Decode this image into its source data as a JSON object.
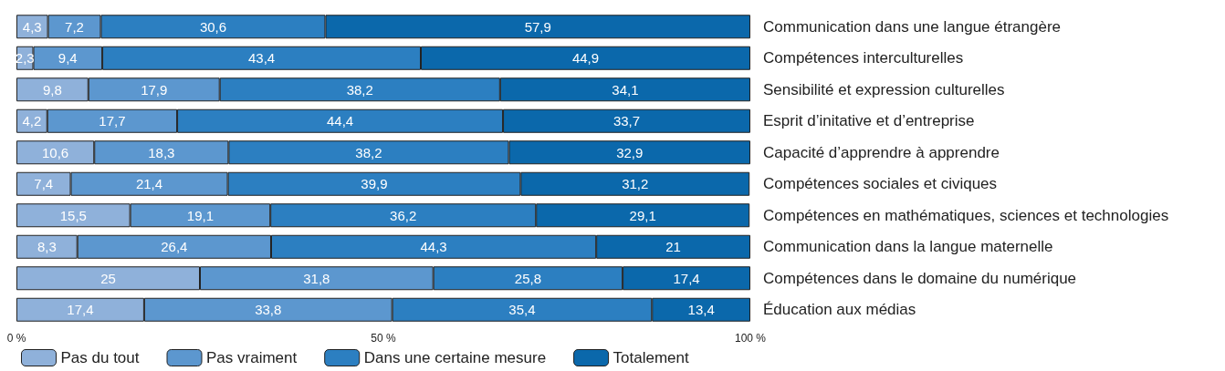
{
  "chart_data": {
    "type": "bar",
    "orientation": "horizontal",
    "stacked": true,
    "categories": [
      "Communication dans une langue étrangère",
      "Compétences interculturelles",
      "Sensibilité et expression culturelles",
      "Esprit d’initative et d’entreprise",
      "Capacité d’apprendre à apprendre",
      "Compétences sociales et civiques",
      "Compétences en mathématiques, sciences et technologies",
      "Communication dans la langue maternelle",
      "Compétences dans le domaine du numérique",
      "Éducation aux médias"
    ],
    "series": [
      {
        "name": "Pas du tout",
        "color": "#8fb1da",
        "values": [
          4.3,
          2.3,
          9.8,
          4.2,
          10.6,
          7.4,
          15.5,
          8.3,
          25,
          17.4
        ],
        "value_labels": [
          "4,3",
          "2,3",
          "9,8",
          "4,2",
          "10,6",
          "7,4",
          "15,5",
          "8,3",
          "25",
          "17,4"
        ]
      },
      {
        "name": "Pas vraiment",
        "color": "#5c97cf",
        "values": [
          7.2,
          9.4,
          17.9,
          17.7,
          18.3,
          21.4,
          19.1,
          26.4,
          31.8,
          33.8
        ],
        "value_labels": [
          "7,2",
          "9,4",
          "17,9",
          "17,7",
          "18,3",
          "21,4",
          "19,1",
          "26,4",
          "31,8",
          "33,8"
        ]
      },
      {
        "name": "Dans une certaine mesure",
        "color": "#2c7fc1",
        "values": [
          30.6,
          43.4,
          38.2,
          44.4,
          38.2,
          39.9,
          36.2,
          44.3,
          25.8,
          35.4
        ],
        "value_labels": [
          "30,6",
          "43,4",
          "38,2",
          "44,4",
          "38,2",
          "39,9",
          "36,2",
          "44,3",
          "25,8",
          "35,4"
        ]
      },
      {
        "name": "Totalement",
        "color": "#0b68ab",
        "values": [
          57.9,
          44.9,
          34.1,
          33.7,
          32.9,
          31.2,
          29.1,
          21,
          17.4,
          13.4
        ],
        "value_labels": [
          "57,9",
          "44,9",
          "34,1",
          "33,7",
          "32,9",
          "31,2",
          "29,1",
          "21",
          "17,4",
          "13,4"
        ]
      }
    ],
    "xlim": [
      0,
      100
    ],
    "xticks": [
      {
        "value": 0,
        "label": "0 %"
      },
      {
        "value": 50,
        "label": "50 %"
      },
      {
        "value": 100,
        "label": "100 %"
      }
    ],
    "grid": false,
    "legend": "bottom"
  }
}
